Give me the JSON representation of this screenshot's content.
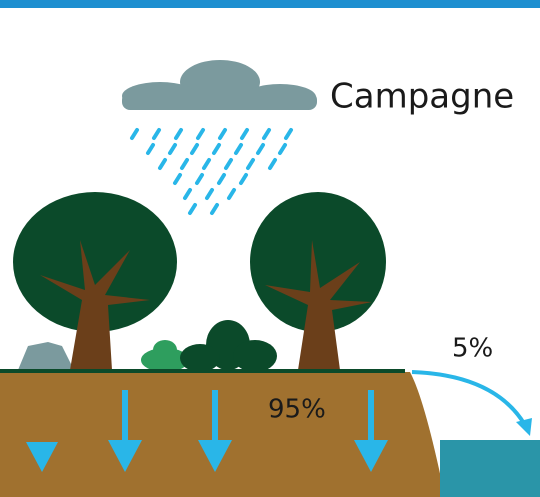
{
  "title": "Campagne",
  "labels": {
    "runoff": "5%",
    "infiltration": "95%"
  }
}
